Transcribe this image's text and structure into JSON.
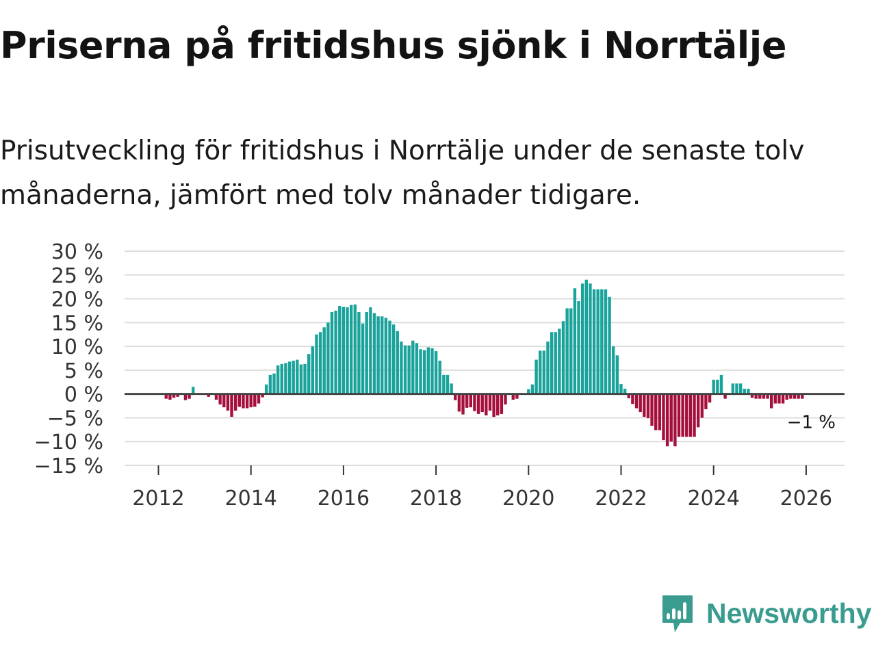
{
  "title": "Priserna på fritidshus sjönk i Norrtälje",
  "subtitle": "Prisutveckling för fritidshus i Norrtälje under de senaste tolv månaderna, jämfört med tolv månader tidigare.",
  "brand": {
    "name": "Newsworthy",
    "icon": "newsworthy-logo-icon",
    "color": "#3a9b8f"
  },
  "colors": {
    "positive": "#1aa39b",
    "negative": "#a50f3c",
    "zero_line": "#444444",
    "grid": "#dddddd"
  },
  "chart_data": {
    "type": "bar",
    "title": "Priserna på fritidshus sjönk i Norrtälje",
    "xlabel": "",
    "ylabel": "",
    "value_unit": "%",
    "ylim": [
      -15,
      30
    ],
    "y_ticks": [
      30,
      25,
      20,
      15,
      10,
      5,
      0,
      -5,
      -10,
      -15
    ],
    "y_tick_labels": [
      "30 %",
      "25 %",
      "20 %",
      "15 %",
      "10 %",
      "5 %",
      "0 %",
      "−5 %",
      "−10 %",
      "−15 %"
    ],
    "x_ticks": [
      "2012",
      "2014",
      "2016",
      "2018",
      "2020",
      "2022",
      "2024",
      "2026"
    ],
    "grid": true,
    "start_period": "2011-01",
    "frequency": "monthly",
    "end_label": "−1 %",
    "values": [
      null,
      null,
      null,
      null,
      null,
      null,
      null,
      null,
      null,
      null,
      null,
      null,
      null,
      null,
      -1,
      -1.2,
      -0.8,
      -0.6,
      0.2,
      -1.3,
      -1,
      1.5,
      null,
      null,
      null,
      -0.6,
      null,
      -1.2,
      -2.2,
      -2.8,
      -3.5,
      -4.8,
      -3.5,
      -2.7,
      -3,
      -3,
      -2.8,
      -2.7,
      -2,
      -0.7,
      2,
      4,
      4.3,
      6,
      6.3,
      6.5,
      6.8,
      7,
      7.2,
      6.2,
      6.3,
      8.4,
      10,
      12.5,
      13,
      14,
      15,
      17.2,
      17.5,
      18.5,
      18.3,
      18.2,
      18.7,
      18.8,
      17.2,
      14.8,
      17.2,
      18.2,
      17,
      16.3,
      16.3,
      16,
      15.4,
      14.6,
      13.2,
      11,
      10.2,
      10.2,
      11.2,
      10.7,
      9.4,
      9.2,
      9.8,
      9.6,
      9,
      7,
      4,
      4,
      2.2,
      -1.3,
      -3.7,
      -4.3,
      -2.9,
      -2.8,
      -3.6,
      -4.2,
      -3.8,
      -4.5,
      -3.5,
      -4.8,
      -4.5,
      -4.2,
      -2.2,
      null,
      -1.2,
      -1,
      null,
      null,
      1,
      2,
      7.2,
      9.1,
      9.1,
      11,
      13,
      13,
      13.7,
      15.3,
      18,
      18,
      22.2,
      19.5,
      23.2,
      24,
      23.2,
      22,
      22,
      22,
      22,
      20.4,
      10,
      8.1,
      2.1,
      1.1,
      -0.9,
      -2.1,
      -3,
      -3.8,
      -4.8,
      -5.1,
      -6.7,
      -7.6,
      -7.6,
      -9.7,
      -11,
      -10,
      -11,
      -9,
      -9,
      -9,
      -9,
      -9,
      -7,
      -5,
      -3.2,
      -1.8,
      3,
      3,
      4,
      -1,
      null,
      2.2,
      2.2,
      2.2,
      1.1,
      1.1,
      -0.8,
      -1,
      -1,
      -1,
      -1,
      -3,
      -2,
      -2,
      -2,
      -1.2,
      -1,
      -1,
      -1,
      -1
    ]
  }
}
